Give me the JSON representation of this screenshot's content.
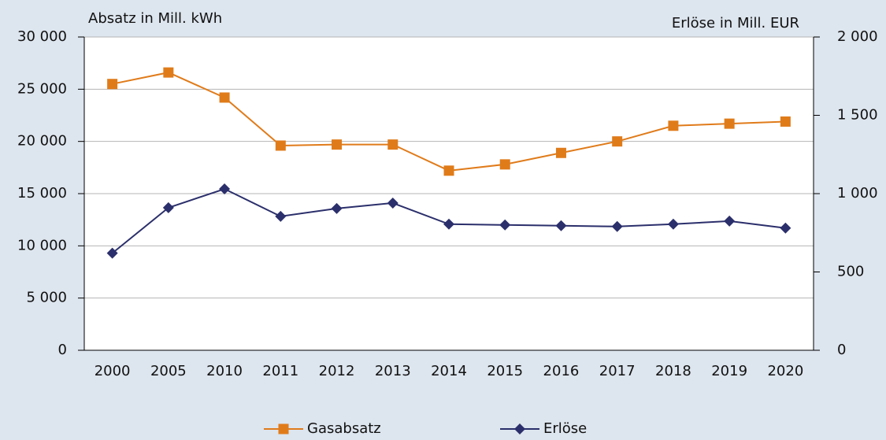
{
  "chart_data": {
    "type": "line",
    "y_axis_label": "Absatz in Mill. kWh",
    "y2_axis_label": "Erlöse in Mill. EUR",
    "categories": [
      "2000",
      "2005",
      "2010",
      "2011",
      "2012",
      "2013",
      "2014",
      "2015",
      "2016",
      "2017",
      "2018",
      "2019",
      "2020"
    ],
    "series": [
      {
        "name": "Gasabsatz",
        "color": "#e07b1a",
        "marker": "square",
        "values": [
          25500,
          26600,
          24200,
          19600,
          19700,
          19700,
          17200,
          17800,
          18900,
          20000,
          21500,
          21700,
          21900
        ]
      },
      {
        "name": "Erlöse",
        "color": "#2b2f6b",
        "marker": "diamond",
        "axis": "y2",
        "values": [
          620,
          910,
          1030,
          855,
          905,
          940,
          805,
          800,
          795,
          790,
          805,
          825,
          780
        ]
      }
    ],
    "ylim": [
      0,
      30000
    ],
    "yticks": [
      0,
      {
        "value": 5000,
        "label": "5 000"
      },
      {
        "value": 10000,
        "label": "10 000"
      },
      {
        "value": 15000,
        "label": "15 000"
      },
      {
        "value": 20000,
        "label": "20 000"
      },
      {
        "value": 25000,
        "label": "25 000"
      },
      {
        "value": 30000,
        "label": "30 000"
      }
    ],
    "y2lim": [
      0,
      2000
    ],
    "y2ticks": [
      0,
      500,
      {
        "value": 1000,
        "label": "1 000"
      },
      {
        "value": 1500,
        "label": "1 500"
      },
      {
        "value": 2000,
        "label": "2 000"
      }
    ],
    "grid": true,
    "legend": "bottom"
  }
}
